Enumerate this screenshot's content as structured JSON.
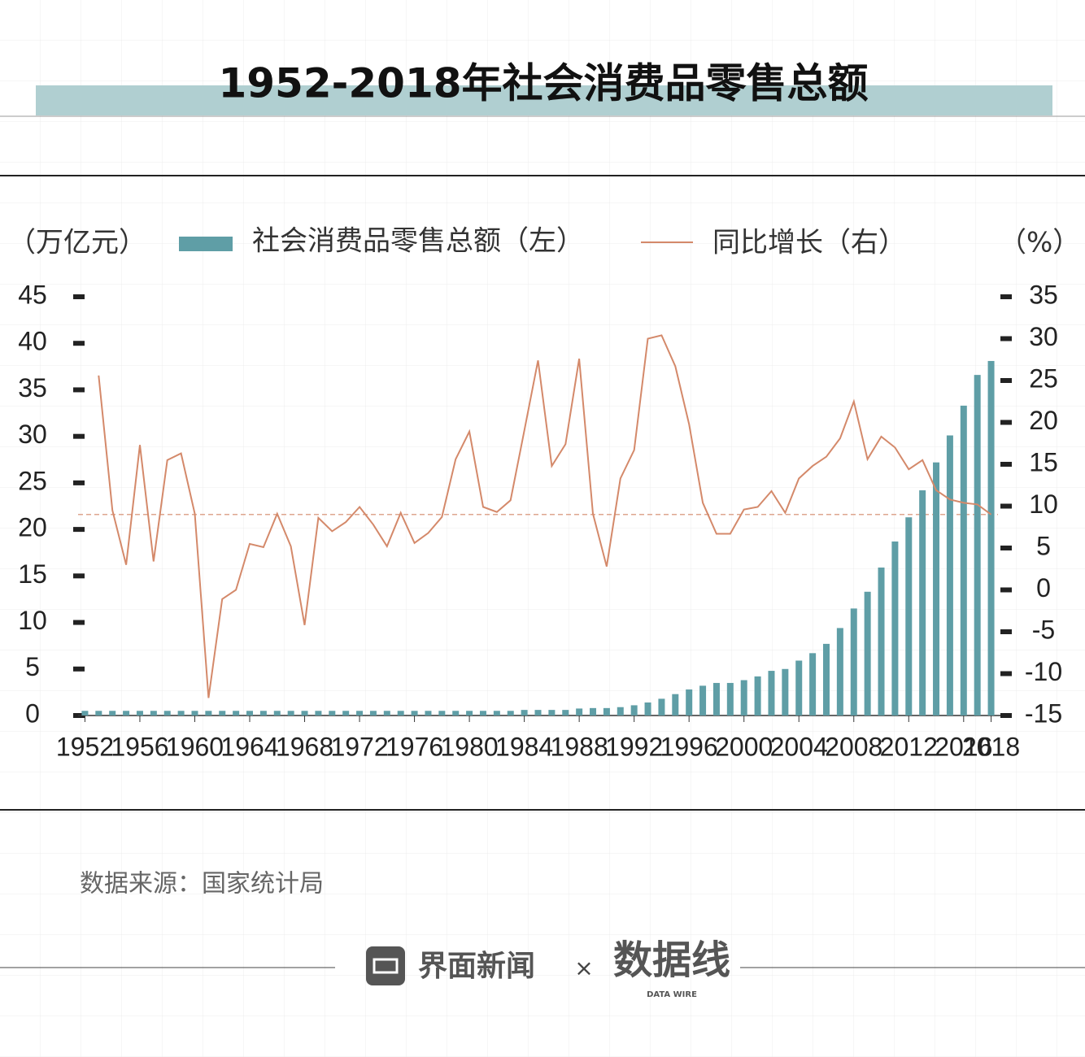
{
  "chart_data": {
    "type": "bar",
    "title": "1952-2018年社会消费品零售总额",
    "ylabel": "（万亿元）",
    "y2label": "（%）",
    "x": [
      1952,
      1953,
      1954,
      1955,
      1956,
      1957,
      1958,
      1959,
      1960,
      1961,
      1962,
      1963,
      1964,
      1965,
      1966,
      1967,
      1968,
      1969,
      1970,
      1971,
      1972,
      1973,
      1974,
      1975,
      1976,
      1977,
      1978,
      1979,
      1980,
      1981,
      1982,
      1983,
      1984,
      1985,
      1986,
      1987,
      1988,
      1989,
      1990,
      1991,
      1992,
      1993,
      1994,
      1995,
      1996,
      1997,
      1998,
      1999,
      2000,
      2001,
      2002,
      2003,
      2004,
      2005,
      2006,
      2007,
      2008,
      2009,
      2010,
      2011,
      2012,
      2013,
      2014,
      2015,
      2016,
      2017,
      2018
    ],
    "xlim": [
      1951.5,
      2018.5
    ],
    "xticks": [
      1952,
      1956,
      1960,
      1964,
      1968,
      1972,
      1976,
      1980,
      1984,
      1988,
      1992,
      1996,
      2000,
      2004,
      2008,
      2012,
      2016,
      2018
    ],
    "ylim": [
      0,
      45
    ],
    "yticks": [
      0,
      5,
      10,
      15,
      20,
      25,
      30,
      35,
      40,
      45
    ],
    "y2lim": [
      -15,
      35
    ],
    "y2ticks": [
      -15,
      -10,
      -5,
      0,
      5,
      10,
      15,
      20,
      25,
      30,
      35
    ],
    "series": [
      {
        "name": "社会消费品零售总额（左）",
        "type": "bar",
        "color": "#5f9ea6",
        "values": [
          0.5,
          0.5,
          0.5,
          0.5,
          0.5,
          0.5,
          0.5,
          0.5,
          0.5,
          0.5,
          0.5,
          0.5,
          0.5,
          0.5,
          0.5,
          0.5,
          0.5,
          0.5,
          0.5,
          0.5,
          0.5,
          0.5,
          0.5,
          0.5,
          0.5,
          0.5,
          0.5,
          0.5,
          0.5,
          0.5,
          0.5,
          0.5,
          0.6,
          0.6,
          0.6,
          0.6,
          0.75,
          0.8,
          0.8,
          0.9,
          1.1,
          1.4,
          1.8,
          2.3,
          2.8,
          3.2,
          3.5,
          3.5,
          3.8,
          4.2,
          4.8,
          5.0,
          5.9,
          6.7,
          7.7,
          9.4,
          11.5,
          13.3,
          15.9,
          18.7,
          21.3,
          24.2,
          27.2,
          30.1,
          33.3,
          36.6,
          38.1
        ]
      },
      {
        "name": "同比增长（右）",
        "type": "line",
        "axis": "y2",
        "color": "#d4896a",
        "values": [
          null,
          25.6,
          9.5,
          3,
          17.3,
          3.4,
          15.5,
          16.3,
          9.1,
          -12.9,
          -1.1,
          0,
          5.5,
          5.1,
          9.1,
          5.2,
          -4.2,
          8.6,
          7.0,
          8.1,
          9.9,
          7.8,
          5.2,
          9.2,
          5.6,
          6.8,
          8.7,
          15.6,
          18.9,
          9.9,
          9.3,
          10.7,
          19.0,
          27.4,
          14.8,
          17.4,
          27.6,
          9.1,
          2.8,
          13.3,
          16.7,
          30.0,
          30.4,
          26.7,
          19.8,
          10.4,
          6.7,
          6.7,
          9.6,
          9.9,
          11.8,
          9.2,
          13.3,
          14.8,
          15.9,
          18.1,
          22.5,
          15.6,
          18.3,
          17.0,
          14.4,
          15.5,
          11.9,
          10.8,
          10.4,
          10.2,
          9.0
        ]
      }
    ],
    "reference_line": {
      "value": 9.0,
      "axis": "y2",
      "color": "#d4896a"
    }
  },
  "source": "数据来源：国家统计局",
  "footer": {
    "brand": "界面新闻",
    "separator": "×",
    "partner": "数据线",
    "partner_en": "DATA WIRE"
  }
}
